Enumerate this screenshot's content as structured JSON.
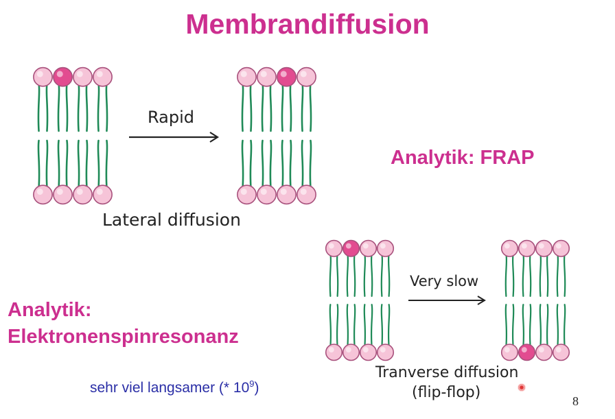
{
  "slide": {
    "title": "Membrandiffusion",
    "page_number": "8",
    "colors": {
      "accent": "#cc2f8f",
      "blue": "#2a2ea6",
      "tail": "#1f8a57",
      "head": "#f6c4d8",
      "head_stroke": "#a8507c",
      "head_marked": "#e24c90",
      "pointer": "#e03535"
    }
  },
  "lateral": {
    "arrow_label": "Rapid",
    "caption": "Lateral diffusion"
  },
  "transverse": {
    "arrow_label": "Very slow",
    "caption_line1": "Tranverse diffusion",
    "caption_line2": "(flip-flop)"
  },
  "analytik_frap": "Analytik: FRAP",
  "analytik_esr": {
    "line1": "Analytik:",
    "line2": "Elektronenspinresonanz"
  },
  "note": {
    "text": "sehr viel langsamer (* 10",
    "exponent": "9",
    "close": ")"
  }
}
